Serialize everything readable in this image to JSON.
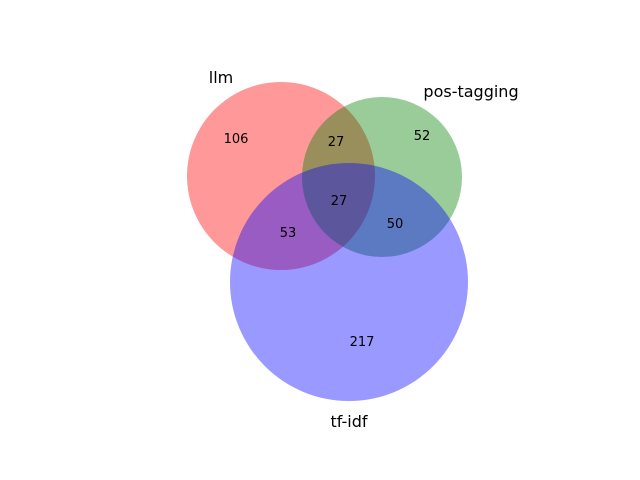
{
  "venn": {
    "sets": [
      {
        "id": "a",
        "label": "llm",
        "color": "#ff0000"
      },
      {
        "id": "b",
        "label": "pos-tagging",
        "color": "#008000"
      },
      {
        "id": "c",
        "label": "tf-idf",
        "color": "#0000ff"
      }
    ],
    "circle_opacity": 0.4,
    "regions": {
      "llm_only": "106",
      "pos_tagging_only": "52",
      "tf_idf_only": "217",
      "llm_pos_tagging": "27",
      "llm_tf_idf": "53",
      "pos_tagging_tf_idf": "50",
      "all_three": "27"
    }
  }
}
